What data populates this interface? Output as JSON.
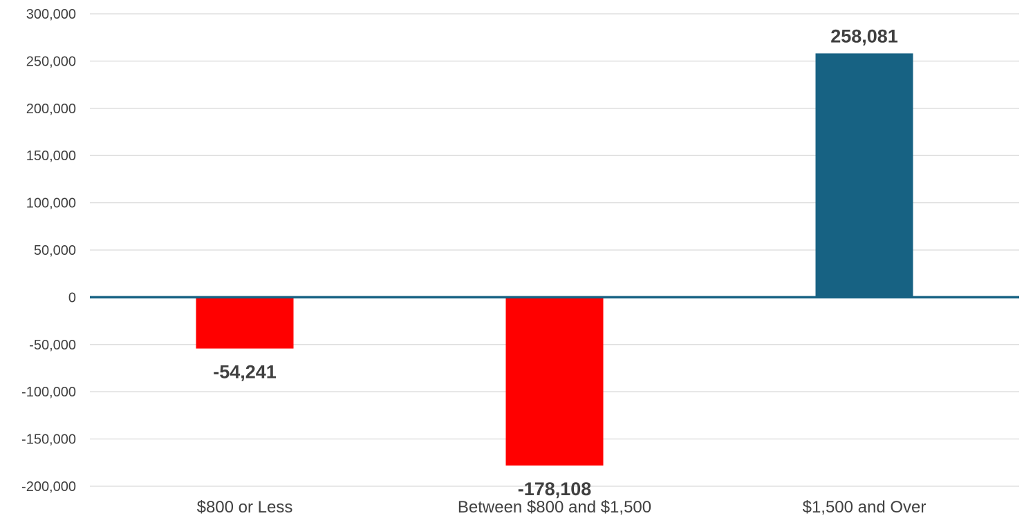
{
  "chart_data": {
    "type": "bar",
    "categories": [
      "$800 or Less",
      "Between $800 and $1,500",
      "$1,500 and Over"
    ],
    "values": [
      -54241,
      -178108,
      258081
    ],
    "data_labels": [
      "-54,241",
      "-178,108",
      "258,081"
    ],
    "bar_colors": [
      "#ff0000",
      "#ff0000",
      "#176283"
    ],
    "zero_line_color": "#176283",
    "ylim": [
      -200000,
      300000
    ],
    "yticks": [
      300000,
      250000,
      200000,
      150000,
      100000,
      50000,
      0,
      -50000,
      -100000,
      -150000,
      -200000
    ],
    "ytick_labels": [
      "300,000",
      "250,000",
      "200,000",
      "150,000",
      "100,000",
      "50,000",
      "0",
      "-50,000",
      "-100,000",
      "-150,000",
      "-200,000"
    ],
    "grid": true,
    "legend": "none"
  }
}
